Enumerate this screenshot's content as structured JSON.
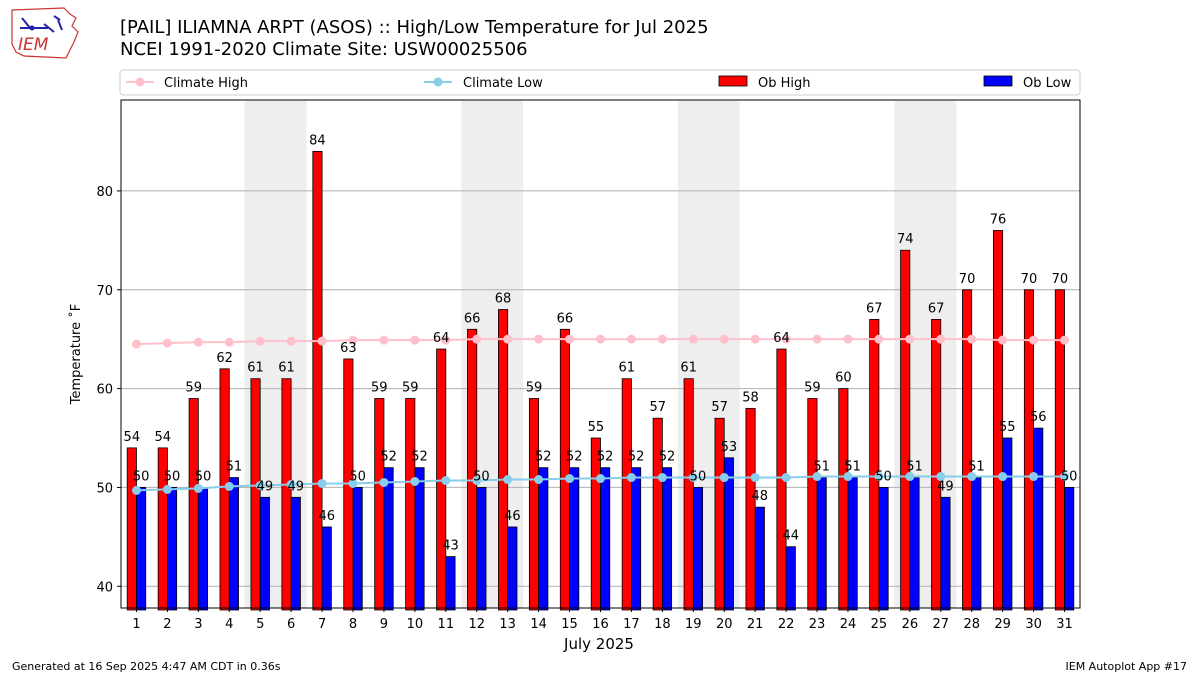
{
  "header": {
    "title_line1": "[PAIL] ILIAMNA ARPT (ASOS) :: High/Low Temperature for Jul 2025",
    "title_line2": "NCEI 1991-2020 Climate Site: USW00025506"
  },
  "logo": {
    "text": "IEM"
  },
  "footer": {
    "left": "Generated at 16 Sep 2025 4:47 AM CDT in 0.36s",
    "right": "IEM Autoplot App #17"
  },
  "colors": {
    "ob_high": "#ff0000",
    "ob_low": "#0000ff",
    "climate_high": "#ffc0cb",
    "climate_low": "#87ceeb",
    "weekend_shade": "#eeeeee",
    "grid": "#b0b0b0"
  },
  "chart_data": {
    "type": "bar",
    "xlabel": "July 2025",
    "ylabel": "Temperature ˚F",
    "ylim": [
      37.8,
      89.2
    ],
    "yticks": [
      40,
      50,
      60,
      70,
      80
    ],
    "grid": true,
    "legend_position": "top",
    "categories": [
      1,
      2,
      3,
      4,
      5,
      6,
      7,
      8,
      9,
      10,
      11,
      12,
      13,
      14,
      15,
      16,
      17,
      18,
      19,
      20,
      21,
      22,
      23,
      24,
      25,
      26,
      27,
      28,
      29,
      30,
      31
    ],
    "shaded_days": [
      [
        5,
        6
      ],
      [
        12,
        13
      ],
      [
        19,
        20
      ],
      [
        26,
        27
      ]
    ],
    "legend": {
      "climate_high": "Climate High",
      "climate_low": "Climate Low",
      "ob_high": "Ob High",
      "ob_low": "Ob Low"
    },
    "series": [
      {
        "name": "Ob High",
        "kind": "bar",
        "values": [
          54,
          54,
          59,
          62,
          61,
          61,
          84,
          63,
          59,
          59,
          64,
          66,
          68,
          59,
          66,
          55,
          61,
          57,
          61,
          57,
          58,
          64,
          59,
          60,
          67,
          74,
          67,
          70,
          76,
          70,
          70
        ]
      },
      {
        "name": "Ob Low",
        "kind": "bar",
        "values": [
          50,
          50,
          50,
          51,
          49,
          49,
          46,
          50,
          52,
          52,
          43,
          50,
          46,
          52,
          52,
          52,
          52,
          52,
          50,
          53,
          48,
          44,
          51,
          51,
          50,
          51,
          49,
          51,
          55,
          56,
          50
        ]
      },
      {
        "name": "Climate High",
        "kind": "line",
        "values": [
          64.5,
          64.6,
          64.7,
          64.7,
          64.8,
          64.8,
          64.8,
          64.9,
          64.9,
          64.9,
          64.9,
          65.0,
          65.0,
          65.0,
          65.0,
          65.0,
          65.0,
          65.0,
          65.0,
          65.0,
          65.0,
          65.0,
          65.0,
          65.0,
          65.0,
          65.0,
          65.0,
          65.0,
          64.9,
          64.9,
          64.9
        ]
      },
      {
        "name": "Climate Low",
        "kind": "line",
        "values": [
          49.7,
          49.8,
          49.9,
          50.1,
          50.2,
          50.3,
          50.4,
          50.4,
          50.5,
          50.6,
          50.7,
          50.7,
          50.8,
          50.8,
          50.9,
          50.9,
          51.0,
          51.0,
          51.0,
          51.0,
          51.0,
          51.0,
          51.1,
          51.1,
          51.1,
          51.1,
          51.1,
          51.1,
          51.1,
          51.1,
          51.1
        ]
      }
    ]
  }
}
